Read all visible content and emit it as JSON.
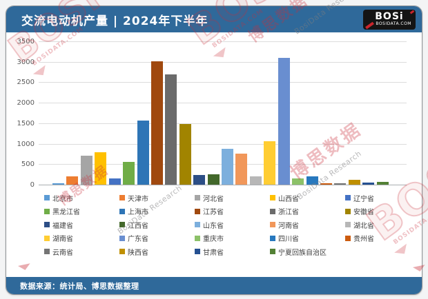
{
  "header": {
    "title": "交流电动机产量 | 2024年下半年",
    "logo": {
      "brand": "BOSi",
      "domain": "BOSIDATA.COM"
    }
  },
  "footer": {
    "source": "数据来源：统计局、博思数据整理"
  },
  "watermarks": {
    "brand": "BOSI",
    "domain": "BOSIDATA.COM",
    "research": "BosiData Research",
    "cn": "博思数据"
  },
  "theme": {
    "primary_blue": "#2F699A",
    "logo_black": "#141414",
    "logo_red": "#C8252C",
    "watermark_red": "#C9303A"
  },
  "chart_data": {
    "type": "bar",
    "title": "交流电动机产量 | 2024年下半年",
    "xlabel": "",
    "ylabel": "",
    "ylim": [
      0,
      3500
    ],
    "yticks": [
      0,
      500,
      1000,
      1500,
      2000,
      2500,
      3000,
      3500
    ],
    "grid": true,
    "legend_position": "bottom",
    "categories": [
      "北京市",
      "天津市",
      "河北省",
      "山西省",
      "辽宁省",
      "黑龙江省",
      "上海市",
      "江苏省",
      "浙江省",
      "安徽省",
      "福建省",
      "江西省",
      "山东省",
      "河南省",
      "湖北省",
      "湖南省",
      "广东省",
      "重庆市",
      "四川省",
      "贵州省",
      "云南省",
      "陕西省",
      "甘肃省",
      "宁夏回族自治区"
    ],
    "values": [
      20,
      200,
      700,
      790,
      150,
      550,
      1560,
      3020,
      2700,
      1480,
      230,
      250,
      870,
      750,
      200,
      1060,
      3100,
      160,
      210,
      25,
      20,
      110,
      45,
      60
    ],
    "colors": [
      "#5B9BD5",
      "#ED7D31",
      "#A5A5A5",
      "#FFC000",
      "#4472C4",
      "#70AD47",
      "#2E75B6",
      "#A0490F",
      "#6B6B6B",
      "#A18400",
      "#2C4E86",
      "#43682B",
      "#7CAFDD",
      "#F1975A",
      "#B7B7B7",
      "#FFCD33",
      "#698ED0",
      "#8CC168",
      "#2778BE",
      "#CC5C0F",
      "#757575",
      "#BF8F00",
      "#255091",
      "#538135"
    ]
  }
}
